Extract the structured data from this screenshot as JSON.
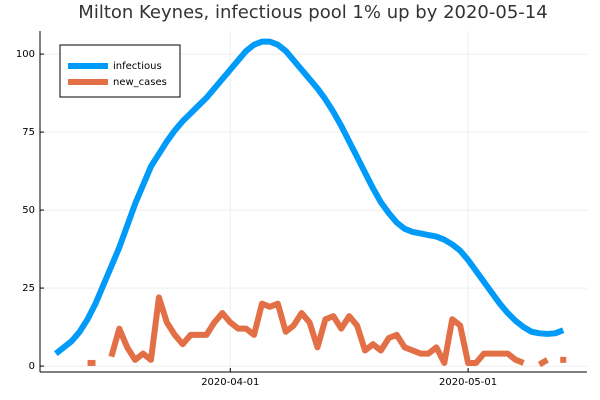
{
  "chart_data": {
    "type": "line",
    "title": "Milton Keynes, infectious pool 1% up by 2020-05-14",
    "x": [
      "2020-03-10",
      "2020-03-11",
      "2020-03-12",
      "2020-03-13",
      "2020-03-14",
      "2020-03-15",
      "2020-03-16",
      "2020-03-17",
      "2020-03-18",
      "2020-03-19",
      "2020-03-20",
      "2020-03-21",
      "2020-03-22",
      "2020-03-23",
      "2020-03-24",
      "2020-03-25",
      "2020-03-26",
      "2020-03-27",
      "2020-03-28",
      "2020-03-29",
      "2020-03-30",
      "2020-03-31",
      "2020-04-01",
      "2020-04-02",
      "2020-04-03",
      "2020-04-04",
      "2020-04-05",
      "2020-04-06",
      "2020-04-07",
      "2020-04-08",
      "2020-04-09",
      "2020-04-10",
      "2020-04-11",
      "2020-04-12",
      "2020-04-13",
      "2020-04-14",
      "2020-04-15",
      "2020-04-16",
      "2020-04-17",
      "2020-04-18",
      "2020-04-19",
      "2020-04-20",
      "2020-04-21",
      "2020-04-22",
      "2020-04-23",
      "2020-04-24",
      "2020-04-25",
      "2020-04-26",
      "2020-04-27",
      "2020-04-28",
      "2020-04-29",
      "2020-04-30",
      "2020-05-01",
      "2020-05-02",
      "2020-05-03",
      "2020-05-04",
      "2020-05-05",
      "2020-05-06",
      "2020-05-07",
      "2020-05-08",
      "2020-05-09",
      "2020-05-10",
      "2020-05-11",
      "2020-05-12",
      "2020-05-13"
    ],
    "series": [
      {
        "name": "infectious",
        "color": "#009af9",
        "values": [
          4,
          6,
          8,
          11,
          15,
          20,
          26,
          32,
          38,
          45,
          52,
          58,
          64,
          68,
          72,
          75.5,
          78.5,
          81,
          83.5,
          86,
          89,
          92,
          95,
          98,
          101,
          103,
          104,
          104,
          103,
          101,
          98,
          95,
          92,
          89,
          85.5,
          81.5,
          77,
          72,
          67,
          62,
          57,
          52.5,
          49,
          46,
          44,
          43,
          42.5,
          42,
          41.5,
          40.5,
          39,
          37,
          34,
          30.5,
          27,
          23.5,
          20,
          17,
          14.5,
          12.5,
          11,
          10.5,
          10.3,
          10.5,
          11.5
        ]
      },
      {
        "name": "new_cases",
        "color": "#e26f46",
        "values": [
          null,
          null,
          null,
          null,
          1,
          1,
          null,
          3,
          12,
          6,
          2,
          4,
          2,
          22,
          14,
          10,
          7,
          10,
          10,
          10,
          14,
          17,
          14,
          12,
          12,
          10,
          20,
          19,
          20,
          11,
          13,
          17,
          14,
          6,
          15,
          16,
          12,
          16,
          13,
          5,
          7,
          5,
          9,
          10,
          6,
          5,
          4,
          4,
          6,
          1,
          15,
          13,
          1,
          1,
          4,
          4,
          4,
          4,
          2,
          1,
          null,
          0.5,
          2,
          null,
          2
        ]
      }
    ],
    "xlim": [
      "2020-03-08",
      "2020-05-16"
    ],
    "xticks": [
      "2020-04-01",
      "2020-05-01"
    ],
    "ylim": [
      -1.9,
      107.4
    ],
    "yticks": [
      0,
      25,
      50,
      75,
      100
    ],
    "grid": true,
    "legend": "top-left"
  }
}
